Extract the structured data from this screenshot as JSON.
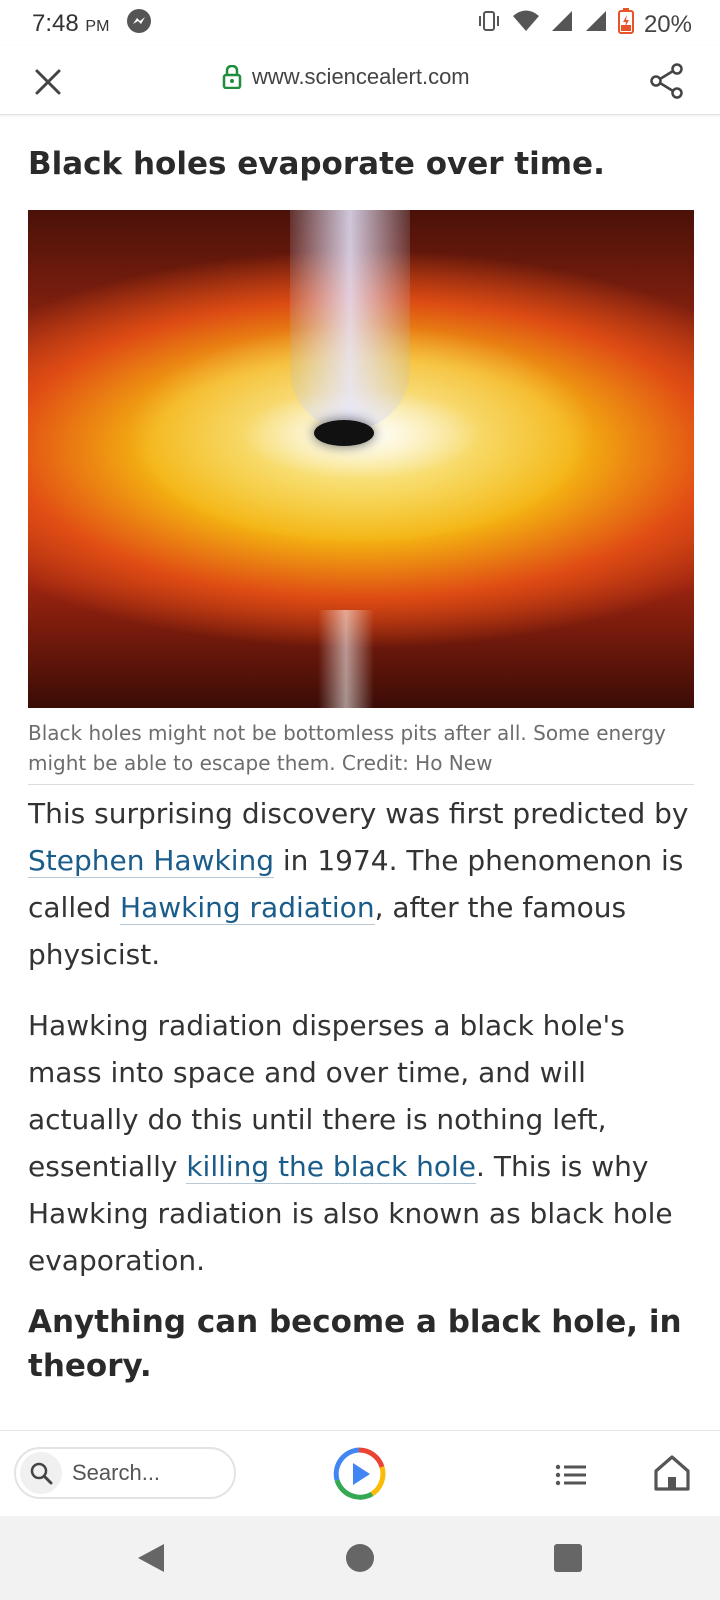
{
  "status_bar": {
    "time": "7:48",
    "ampm": "PM",
    "battery": "20%",
    "icons": [
      "messenger-icon",
      "vibrate-icon",
      "wifi-icon",
      "signal-icon",
      "signal-icon",
      "battery-icon"
    ]
  },
  "toolbar": {
    "url": "www.sciencealert.com",
    "icons": [
      "close-icon",
      "lock-icon",
      "share-icon"
    ]
  },
  "article": {
    "heading1": "Black holes evaporate over time.",
    "image_caption": "Black holes might not be bottomless pits after all. Some energy might be able to escape them. Credit: Ho New",
    "p1": {
      "t1": "This surprising discovery was first predicted by ",
      "link1": "Stephen Hawking",
      "t2": " in 1974. The phenomenon is called ",
      "link2": "Hawking radiation",
      "t3": ", after the famous physicist."
    },
    "p2": {
      "t1": "Hawking radiation disperses a black hole's mass into space and over time, and will actually do this until there is nothing left, essentially ",
      "link1": "killing the black hole",
      "t2": ". This is why Hawking radiation is also known as black hole evaporation."
    },
    "heading2": "Anything can become a black hole, in theory."
  },
  "bottom_bar": {
    "search_placeholder": "Search...",
    "icons": [
      "search-icon",
      "play-icon",
      "list-icon",
      "home-icon"
    ]
  },
  "nav_bar": {
    "icons": [
      "back-icon",
      "home-circle-icon",
      "recents-icon"
    ]
  },
  "colors": {
    "link": "#1a5c8a",
    "lock_green": "#1e8e3e",
    "battery_low": "#e8542a"
  }
}
